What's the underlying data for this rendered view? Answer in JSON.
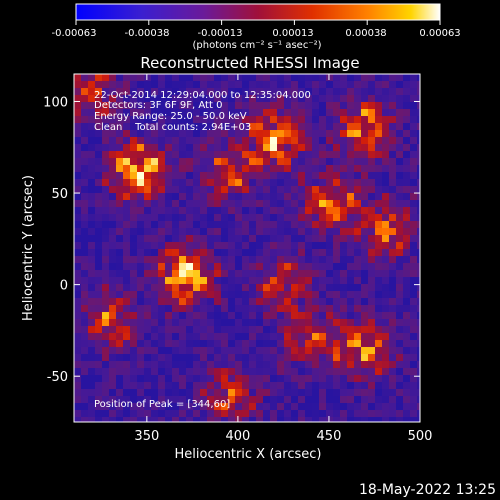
{
  "chart_data": {
    "type": "heatmap",
    "title": "Reconstructed RHESSI Image",
    "xlabel": "Heliocentric X (arcsec)",
    "ylabel": "Heliocentric Y (arcsec)",
    "xlim": [
      310,
      500
    ],
    "ylim": [
      -75,
      115
    ],
    "xticks": [
      350,
      400,
      450,
      500
    ],
    "yticks": [
      -50,
      0,
      50,
      100
    ],
    "colorbar": {
      "min": -0.00063,
      "max": 0.00063,
      "tick_labels": [
        "-0.00063",
        "-0.00038",
        "-0.00013",
        "0.00013",
        "0.00038",
        "0.00063"
      ],
      "unit_label": "(photons cm⁻² s⁻¹ asec⁻²)"
    },
    "annotations": [
      "22-Oct-2014 12:29:04.000 to 12:35:04.000",
      "Detectors: 3F 6F 9F, Att 0",
      "Energy Range: 25.0 - 50.0 keV",
      "Clean    Total counts: 2.94E+03"
    ],
    "peak_label": "Position of Peak = [344,60]",
    "bright_regions": [
      {
        "x": 345,
        "y": 62,
        "strength": 1.0
      },
      {
        "x": 372,
        "y": 5,
        "strength": 1.0
      },
      {
        "x": 420,
        "y": 80,
        "strength": 0.9
      },
      {
        "x": 395,
        "y": 60,
        "strength": 0.6
      },
      {
        "x": 450,
        "y": 45,
        "strength": 0.75
      },
      {
        "x": 470,
        "y": 85,
        "strength": 0.8
      },
      {
        "x": 480,
        "y": 30,
        "strength": 0.7
      },
      {
        "x": 470,
        "y": -35,
        "strength": 0.75
      },
      {
        "x": 440,
        "y": -30,
        "strength": 0.6
      },
      {
        "x": 425,
        "y": 0,
        "strength": 0.6
      },
      {
        "x": 330,
        "y": -20,
        "strength": 0.65
      },
      {
        "x": 395,
        "y": -60,
        "strength": 0.6
      },
      {
        "x": 320,
        "y": 105,
        "strength": 0.6
      }
    ]
  },
  "footer": {
    "timestamp": "18-May-2022 13:25"
  }
}
